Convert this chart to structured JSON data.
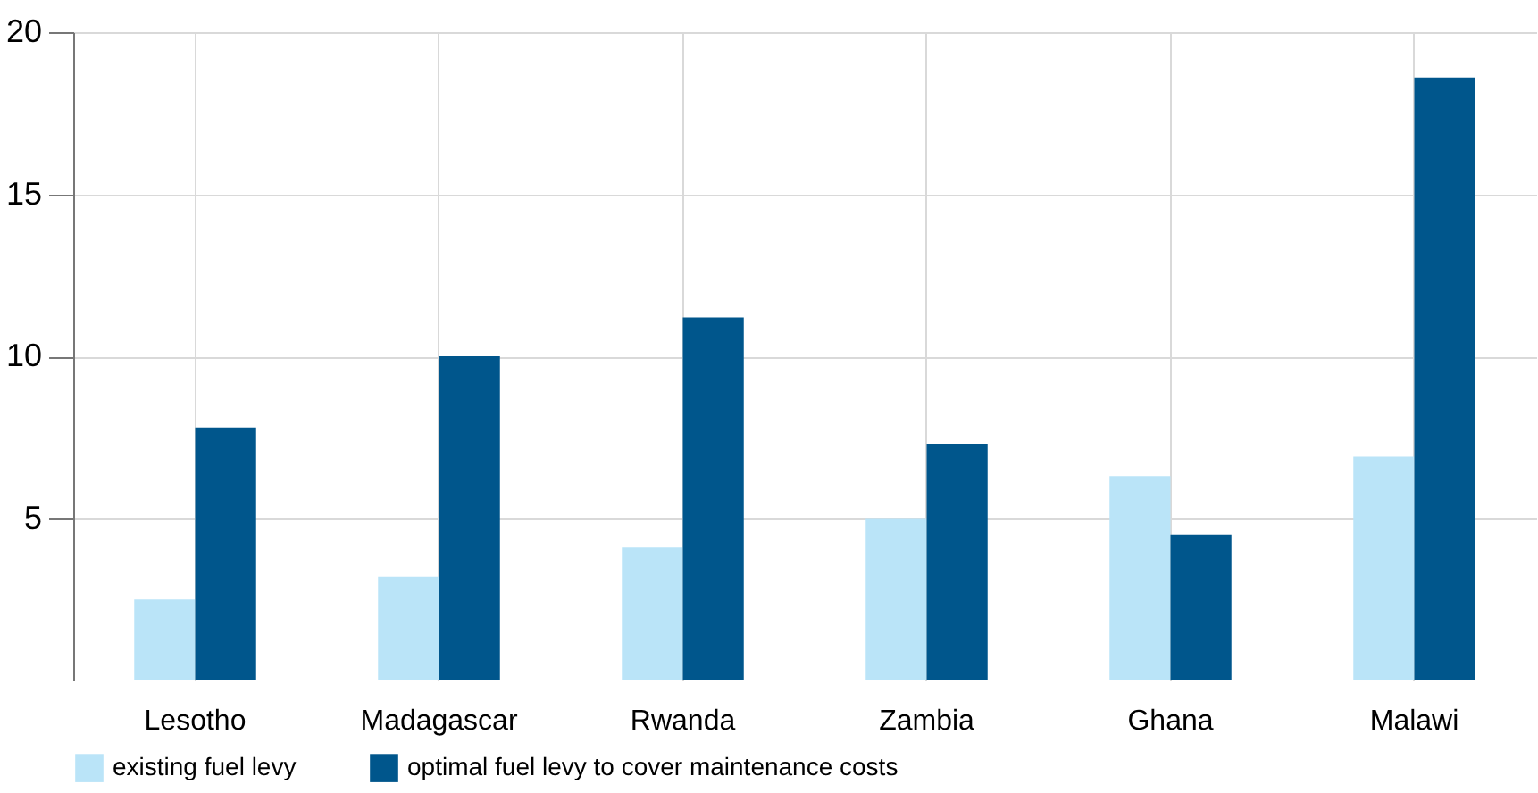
{
  "chart_data": {
    "type": "bar",
    "categories": [
      "Lesotho",
      "Madagascar",
      "Rwanda",
      "Zambia",
      "Ghana",
      "Malawi"
    ],
    "series": [
      {
        "name": "existing fuel levy",
        "color": "#bae4f8",
        "values": [
          2.5,
          3.2,
          4.1,
          5.0,
          6.3,
          6.9
        ]
      },
      {
        "name": "optimal fuel levy to cover maintenance costs",
        "color": "#00568c",
        "values": [
          7.8,
          10.0,
          11.2,
          7.3,
          4.5,
          18.6
        ]
      }
    ],
    "ylim": [
      0,
      20
    ],
    "yticks": [
      5,
      10,
      15,
      20
    ],
    "grid": true,
    "legend": "bottom"
  }
}
